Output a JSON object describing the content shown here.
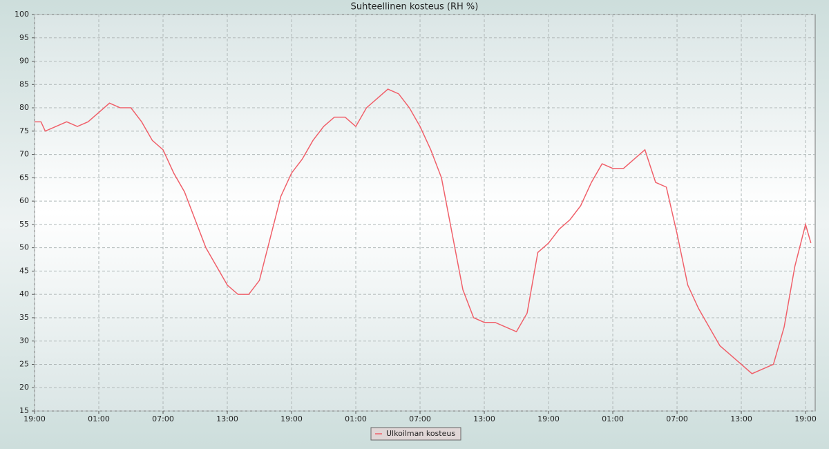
{
  "chart_data": {
    "type": "line",
    "title": "Suhteellinen kosteus (RH %)",
    "x": [
      0,
      0.6,
      1,
      2,
      3,
      4,
      5,
      6,
      7,
      8,
      9,
      10,
      11,
      12,
      13,
      14,
      15,
      16,
      17,
      18,
      19,
      20,
      21,
      22,
      23,
      24,
      25,
      26,
      27,
      28,
      29,
      30,
      31,
      32,
      33,
      34,
      35,
      36,
      37,
      38,
      39,
      40,
      41,
      42,
      43,
      44,
      45,
      46,
      47,
      48,
      49,
      50,
      51,
      52,
      53,
      54,
      55,
      56,
      57,
      58,
      59,
      60,
      61,
      62,
      63,
      64,
      65,
      66,
      67,
      68,
      69,
      70,
      71,
      72,
      72.5
    ],
    "series": [
      {
        "name": "Ulkoilman kosteus",
        "color": "#f0606a",
        "values": [
          77,
          77,
          75,
          76,
          77,
          76,
          77,
          79,
          81,
          80,
          80,
          77,
          73,
          71,
          66,
          62,
          56,
          50,
          46,
          42,
          40,
          40,
          43,
          52,
          61,
          66,
          69,
          73,
          76,
          78,
          78,
          76,
          80,
          82,
          84,
          83,
          80,
          76,
          71,
          65,
          53,
          41,
          35,
          34,
          34,
          33,
          32,
          36,
          49,
          51,
          54,
          56,
          59,
          64,
          68,
          67,
          67,
          69,
          71,
          64,
          63,
          53,
          42,
          37,
          33,
          29,
          27,
          25,
          23,
          24,
          25,
          33,
          46,
          55,
          51
        ]
      }
    ],
    "xlim": [
      0,
      72.9
    ],
    "xticks": [
      {
        "value": 0,
        "label": "19:00"
      },
      {
        "value": 6,
        "label": "01:00"
      },
      {
        "value": 12,
        "label": "07:00"
      },
      {
        "value": 18,
        "label": "13:00"
      },
      {
        "value": 24,
        "label": "19:00"
      },
      {
        "value": 30,
        "label": "01:00"
      },
      {
        "value": 36,
        "label": "07:00"
      },
      {
        "value": 42,
        "label": "13:00"
      },
      {
        "value": 48,
        "label": "19:00"
      },
      {
        "value": 54,
        "label": "01:00"
      },
      {
        "value": 60,
        "label": "07:00"
      },
      {
        "value": 66,
        "label": "13:00"
      },
      {
        "value": 72,
        "label": "19:00"
      }
    ],
    "ylim": [
      15,
      100
    ],
    "yticks": [
      15,
      20,
      25,
      30,
      35,
      40,
      45,
      50,
      55,
      60,
      65,
      70,
      75,
      80,
      85,
      90,
      95,
      100
    ],
    "grid": true,
    "legend": "bottom"
  }
}
